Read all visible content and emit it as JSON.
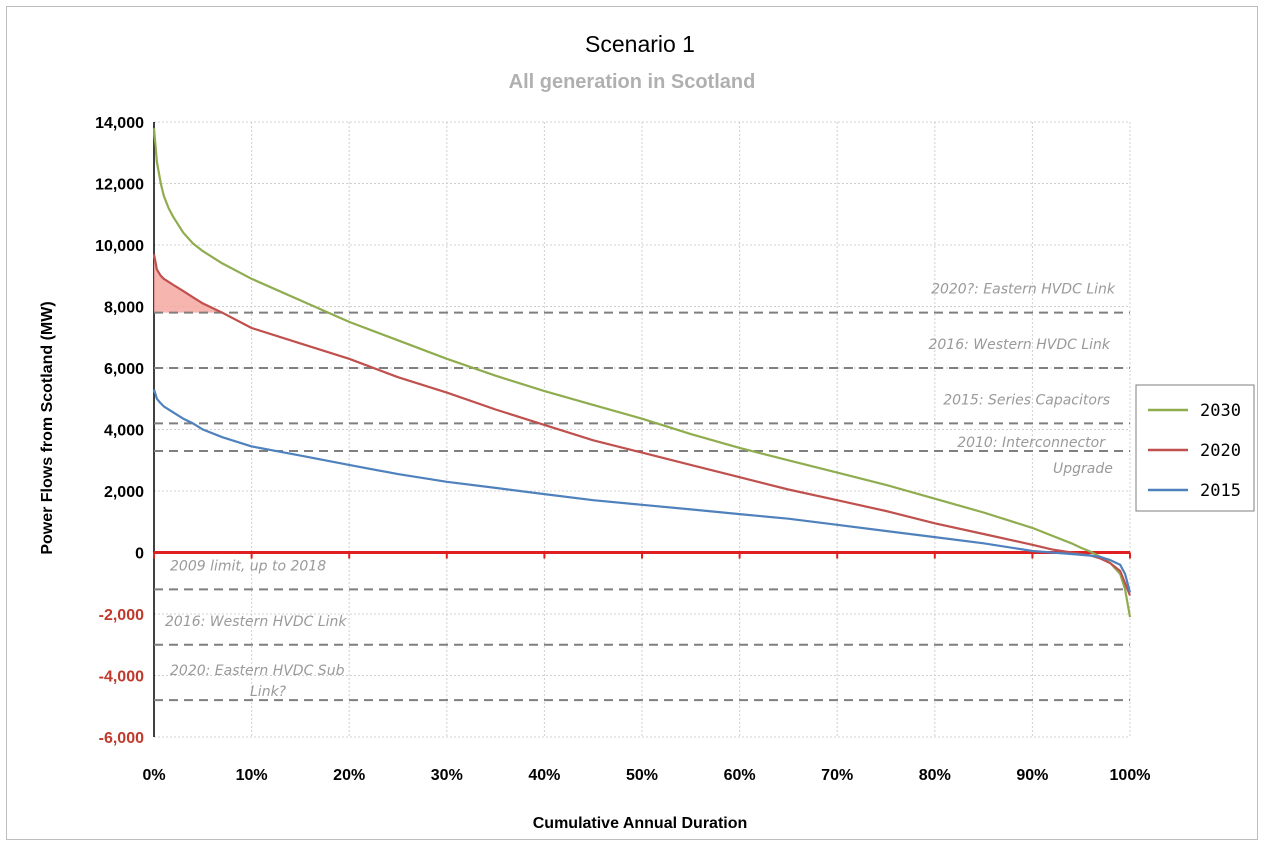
{
  "chart_data": {
    "type": "line",
    "title": "Scenario 1",
    "subtitle": "All generation in Scotland",
    "xlabel": "Cumulative Annual Duration",
    "ylabel": "Power Flows from Scotland (MW)",
    "xlim": [
      0,
      100
    ],
    "ylim": [
      -6000,
      14000
    ],
    "x_ticks": [
      "0%",
      "10%",
      "20%",
      "30%",
      "40%",
      "50%",
      "60%",
      "70%",
      "80%",
      "90%",
      "100%"
    ],
    "y_ticks": [
      "14,000",
      "12,000",
      "10,000",
      "8,000",
      "6,000",
      "4,000",
      "2,000",
      "0",
      "-2,000",
      "-4,000",
      "-6,000"
    ],
    "y_tick_values": [
      14000,
      12000,
      10000,
      8000,
      6000,
      4000,
      2000,
      0,
      -2000,
      -4000,
      -6000
    ],
    "grid": true,
    "legend_position": "right",
    "series": [
      {
        "name": "2030",
        "color": "#8fac4f",
        "x": [
          0,
          0.3,
          0.7,
          1,
          1.5,
          2,
          3,
          4,
          5,
          7,
          10,
          15,
          20,
          25,
          30,
          35,
          40,
          45,
          50,
          55,
          60,
          65,
          70,
          75,
          80,
          85,
          90,
          92,
          94,
          95,
          96,
          97,
          98,
          99,
          99.5,
          100
        ],
        "values": [
          13800,
          12700,
          12000,
          11600,
          11200,
          10900,
          10400,
          10050,
          9800,
          9400,
          8900,
          8200,
          7500,
          6900,
          6300,
          5750,
          5250,
          4800,
          4350,
          3850,
          3400,
          3000,
          2600,
          2200,
          1750,
          1300,
          800,
          550,
          300,
          150,
          20,
          -150,
          -350,
          -700,
          -1200,
          -2100
        ]
      },
      {
        "name": "2020",
        "color": "#c0504d",
        "x": [
          0,
          0.3,
          0.7,
          1,
          2,
          3,
          4,
          5,
          7,
          10,
          15,
          20,
          25,
          30,
          35,
          40,
          45,
          50,
          55,
          60,
          65,
          70,
          75,
          80,
          85,
          90,
          92,
          94,
          96,
          97,
          98,
          99,
          99.5,
          100
        ],
        "values": [
          9700,
          9200,
          9000,
          8900,
          8700,
          8500,
          8300,
          8100,
          7800,
          7300,
          6800,
          6300,
          5700,
          5200,
          4650,
          4150,
          3650,
          3250,
          2850,
          2450,
          2050,
          1700,
          1350,
          950,
          600,
          250,
          100,
          0,
          -100,
          -200,
          -350,
          -600,
          -1000,
          -1400
        ]
      },
      {
        "name": "2015",
        "color": "#4f81bd",
        "x": [
          0,
          0.3,
          0.7,
          1,
          2,
          3,
          4,
          5,
          7,
          10,
          15,
          20,
          25,
          30,
          35,
          40,
          45,
          50,
          55,
          60,
          65,
          70,
          75,
          80,
          85,
          90,
          92,
          94,
          96,
          97,
          98,
          99,
          99.5,
          100
        ],
        "values": [
          5300,
          5000,
          4850,
          4750,
          4550,
          4350,
          4200,
          4000,
          3750,
          3450,
          3150,
          2850,
          2550,
          2300,
          2100,
          1900,
          1700,
          1550,
          1400,
          1250,
          1100,
          900,
          700,
          500,
          300,
          50,
          0,
          -50,
          -100,
          -150,
          -250,
          -400,
          -700,
          -1300
        ]
      }
    ],
    "shaded_region": {
      "color": "#f4a8a0",
      "upper_series": "2020",
      "lower_limit": 7800,
      "x_range": [
        0,
        7
      ]
    },
    "limits": [
      {
        "value": 7800,
        "label": "2020?: Eastern HVDC Link"
      },
      {
        "value": 6000,
        "label": "2016: Western HVDC Link"
      },
      {
        "value": 4200,
        "label": "2015: Series Capacitors"
      },
      {
        "value": 3300,
        "label_line1": "2010: Interconnector",
        "label_line2": "Upgrade"
      },
      {
        "value": -1200,
        "label": "2009 limit, up to 2018"
      },
      {
        "value": -3000,
        "label": "2016: Western HVDC Link"
      },
      {
        "value": -4800,
        "label_line1": "2020: Eastern HVDC Sub",
        "label_line2": "Link?"
      }
    ],
    "zero_line_color": "#e02020",
    "limit_line_color": "#7f7f7f",
    "grid_color": "#d0d0d0"
  }
}
